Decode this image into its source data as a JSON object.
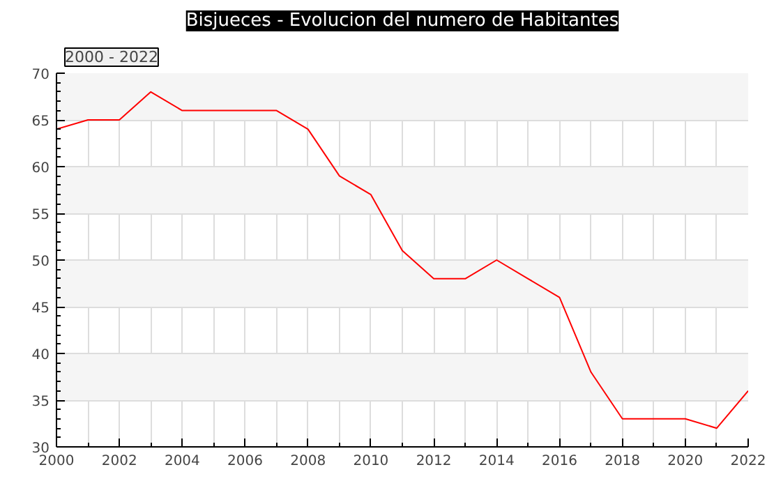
{
  "chart_data": {
    "type": "line",
    "title": "Bisjueces - Evolucion del numero de Habitantes",
    "subtitle": "2000 - 2022",
    "x": [
      2000,
      2001,
      2002,
      2003,
      2004,
      2005,
      2006,
      2007,
      2008,
      2009,
      2010,
      2011,
      2012,
      2013,
      2014,
      2015,
      2016,
      2017,
      2018,
      2019,
      2020,
      2021,
      2022
    ],
    "series": [
      {
        "color": "#ff0000",
        "values": [
          64,
          65,
          65,
          68,
          66,
          66,
          66,
          66,
          64,
          59,
          57,
          51,
          48,
          48,
          50,
          48,
          46,
          38,
          33,
          33,
          33,
          32,
          36
        ]
      }
    ],
    "xlim": [
      2000,
      2022
    ],
    "xticks": [
      2000,
      2002,
      2004,
      2006,
      2008,
      2010,
      2012,
      2014,
      2016,
      2018,
      2020,
      2022
    ],
    "ylim": [
      30,
      70
    ],
    "yticks": [
      30,
      35,
      40,
      45,
      50,
      55,
      60,
      65,
      70
    ],
    "grid": true,
    "marker": "none",
    "line_style": "solid"
  }
}
